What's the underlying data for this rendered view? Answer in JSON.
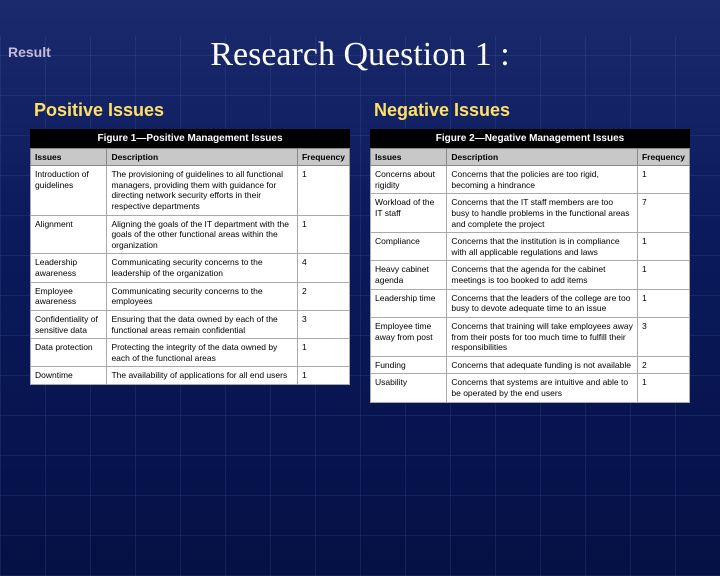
{
  "corner_label": "Result",
  "main_title": "Research Question 1 :",
  "left": {
    "heading": "Positive Issues",
    "figure_caption": "Figure 1—Positive Management Issues",
    "columns": [
      "Issues",
      "Description",
      "Frequency"
    ],
    "rows": [
      [
        "Introduction of guidelines",
        "The provisioning of guidelines to all functional managers, providing them with guidance for directing network security efforts in their respective departments",
        "1"
      ],
      [
        "Alignment",
        "Aligning the goals of the IT department with the goals of the other functional areas within the organization",
        "1"
      ],
      [
        "Leadership awareness",
        "Communicating security concerns to the leadership of the organization",
        "4"
      ],
      [
        "Employee awareness",
        "Communicating security concerns to the employees",
        "2"
      ],
      [
        "Confidentiality of sensitive data",
        "Ensuring that the data owned by each of the functional areas remain confidential",
        "3"
      ],
      [
        "Data protection",
        "Protecting the integrity of the data owned by each of the functional areas",
        "1"
      ],
      [
        "Downtime",
        "The availability of applications for all end users",
        "1"
      ]
    ]
  },
  "right": {
    "heading": "Negative Issues",
    "figure_caption": "Figure 2—Negative Management Issues",
    "columns": [
      "Issues",
      "Description",
      "Frequency"
    ],
    "rows": [
      [
        "Concerns about rigidity",
        "Concerns that the policies are too rigid, becoming a hindrance",
        "1"
      ],
      [
        "Workload of the IT staff",
        "Concerns that the IT staff members are too busy to handle problems in the functional areas and complete the project",
        "7"
      ],
      [
        "Compliance",
        "Concerns that the institution is in compliance with all applicable regulations and laws",
        "1"
      ],
      [
        "Heavy cabinet agenda",
        "Concerns that the agenda for the cabinet meetings is too booked to add items",
        "1"
      ],
      [
        "Leadership time",
        "Concerns that the leaders of the college are too busy to devote adequate time to an issue",
        "1"
      ],
      [
        "Employee time away from post",
        "Concerns that training will take employees away from their posts for too much time to fulfill their responsibilities",
        "3"
      ],
      [
        "Funding",
        "Concerns that adequate funding is not available",
        "2"
      ],
      [
        "Usability",
        "Concerns that systems are intuitive and able to be operated by the end users",
        "1"
      ]
    ]
  }
}
